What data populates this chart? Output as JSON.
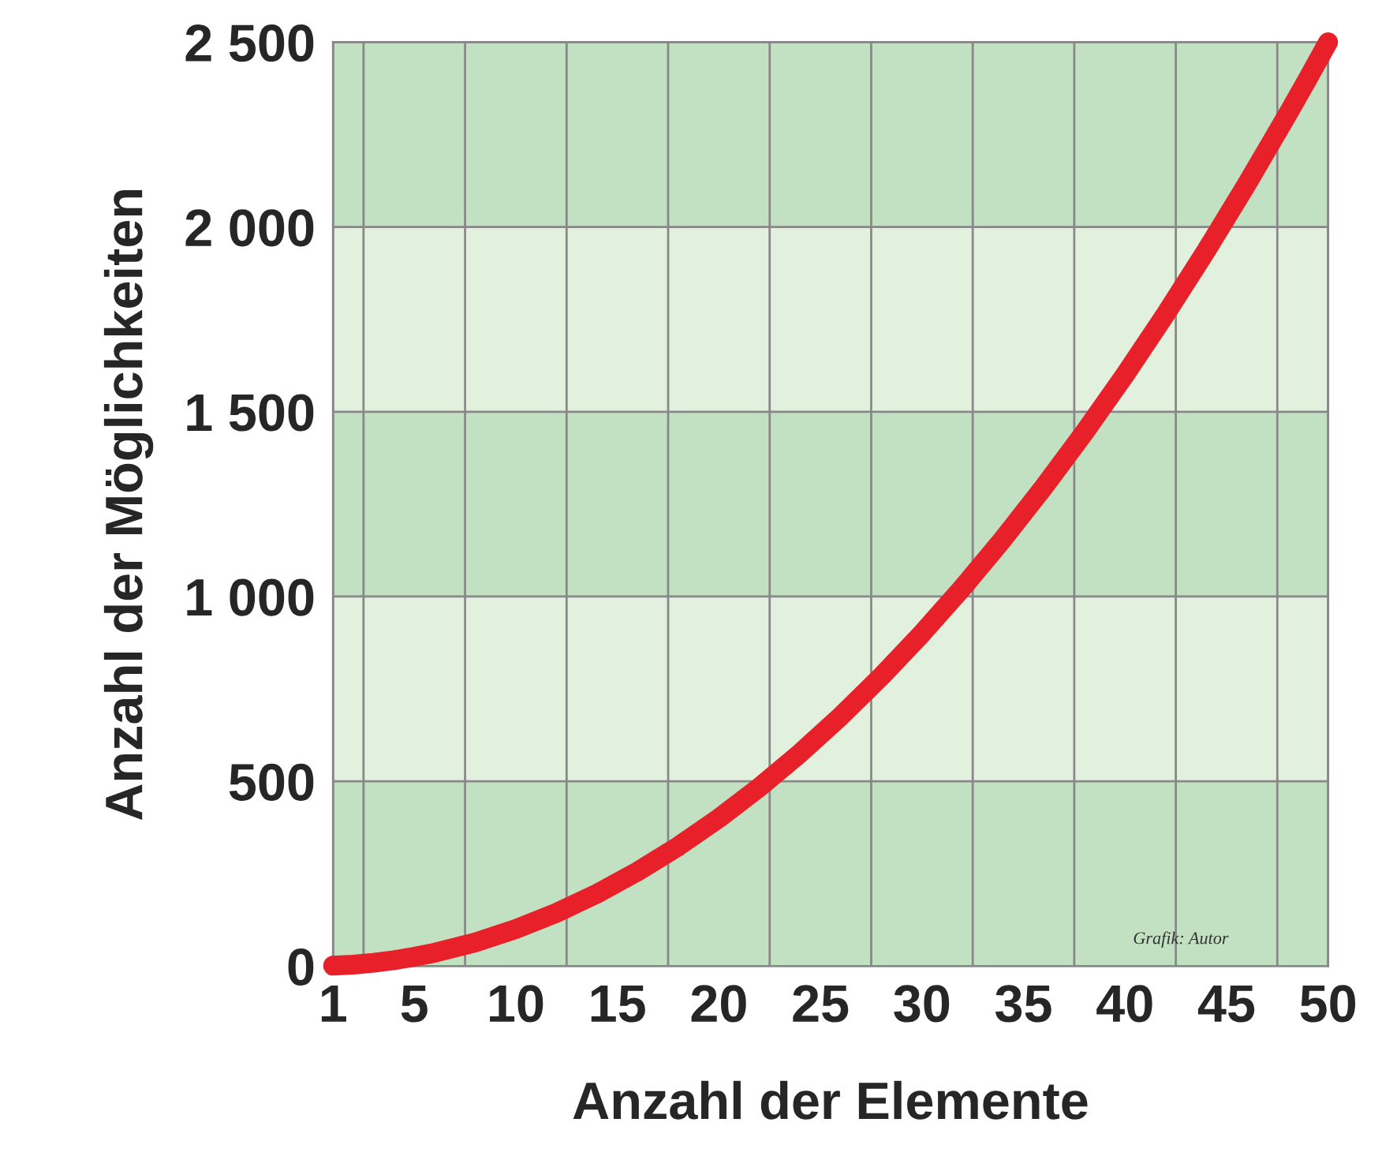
{
  "chart_data": {
    "type": "line",
    "xlabel": "Anzahl der Elemente",
    "ylabel": "Anzahl der Möglichkeiten",
    "x": [
      1,
      2,
      3,
      4,
      5,
      6,
      8,
      10,
      12,
      14,
      16,
      18,
      20,
      22,
      24,
      26,
      28,
      30,
      32,
      34,
      36,
      38,
      40,
      42,
      44,
      46,
      48,
      49,
      50
    ],
    "series": [
      {
        "color": "#e8202a",
        "values": [
          1,
          4,
          9,
          16,
          25,
          36,
          64,
          100,
          144,
          196,
          256,
          324,
          400,
          484,
          576,
          676,
          784,
          900,
          1024,
          1156,
          1296,
          1444,
          1600,
          1764,
          1936,
          2116,
          2304,
          2401,
          2500
        ]
      }
    ],
    "xlim": [
      1,
      50
    ],
    "xticks": [
      1,
      {
        "value": 2.5,
        "label": null
      },
      5,
      {
        "value": 7.5,
        "label": null
      },
      10,
      {
        "value": 12.5,
        "label": null
      },
      15,
      {
        "value": 17.5,
        "label": null
      },
      20,
      {
        "value": 22.5,
        "label": null
      },
      25,
      {
        "value": 27.5,
        "label": null
      },
      30,
      {
        "value": 32.5,
        "label": null
      },
      35,
      {
        "value": 37.5,
        "label": null
      },
      40,
      {
        "value": 42.5,
        "label": null
      },
      45,
      {
        "value": 47.5,
        "label": null
      },
      50
    ],
    "ylim": [
      0,
      2500
    ],
    "yticks": [
      0,
      500,
      {
        "value": 1000,
        "label": "1 000"
      },
      {
        "value": 1500,
        "label": "1 500"
      },
      {
        "value": 2000,
        "label": "2 000"
      },
      {
        "value": 2500,
        "label": "2 500"
      }
    ],
    "bands": [
      {
        "axis": "y",
        "from": 0,
        "to": 500,
        "color": "#c2e0c2"
      },
      {
        "axis": "y",
        "from": 500,
        "to": 1000,
        "color": "#e2f0de"
      },
      {
        "axis": "y",
        "from": 1000,
        "to": 1500,
        "color": "#c2e0c2"
      },
      {
        "axis": "y",
        "from": 1500,
        "to": 2000,
        "color": "#e2f0de"
      },
      {
        "axis": "y",
        "from": 2000,
        "to": 2500,
        "color": "#c2e0c2"
      }
    ],
    "grid": true,
    "marker": "none",
    "line_style": "solid",
    "annotations": [
      "Grafik: Autor"
    ]
  }
}
